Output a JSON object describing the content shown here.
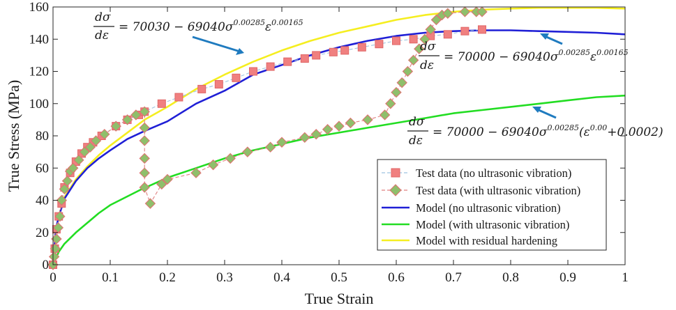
{
  "chart_data": {
    "type": "line",
    "xlabel": "True Strain",
    "ylabel": "True Stress (MPa)",
    "xlim": [
      0,
      1
    ],
    "ylim": [
      0,
      160
    ],
    "xticks": [
      0,
      0.1,
      0.2,
      0.3,
      0.4,
      0.5,
      0.6,
      0.7,
      0.8,
      0.9,
      1
    ],
    "xtick_labels": [
      "0",
      "0.1",
      "0.2",
      "0.3",
      "0.4",
      "0.5",
      "0.6",
      "0.7",
      "0.8",
      "0.9",
      "1"
    ],
    "yticks": [
      0,
      20,
      40,
      60,
      80,
      100,
      120,
      140,
      160
    ],
    "ytick_labels": [
      "0",
      "20",
      "40",
      "60",
      "80",
      "100",
      "120",
      "140",
      "160"
    ],
    "legend_position": "bottom-right",
    "series": [
      {
        "name": "Test data (no ultrasonic vibration)",
        "style": "marker-square",
        "color": "#f08080",
        "edge": "#e06666",
        "line": "#9ec4e0",
        "x": [
          0,
          0.003,
          0.006,
          0.01,
          0.015,
          0.02,
          0.03,
          0.04,
          0.05,
          0.06,
          0.07,
          0.085,
          0.11,
          0.13,
          0.15,
          0.16,
          0.19,
          0.22,
          0.26,
          0.29,
          0.32,
          0.35,
          0.38,
          0.41,
          0.44,
          0.46,
          0.49,
          0.51,
          0.54,
          0.57,
          0.6,
          0.63,
          0.66,
          0.69,
          0.72,
          0.75
        ],
        "y": [
          0,
          10,
          22,
          30,
          38,
          48,
          57,
          64,
          69,
          73,
          76,
          80,
          86,
          90,
          93,
          95,
          100,
          104,
          109,
          112,
          116,
          120,
          123,
          126,
          128,
          130,
          132,
          133,
          135,
          137,
          139,
          140,
          142,
          143,
          145,
          146
        ]
      },
      {
        "name": "Test data (with ultrasonic vibration)",
        "style": "marker-diamond",
        "color": "#8fbf6b",
        "edge": "#e07070",
        "line": "#e08080",
        "x": [
          0,
          0.002,
          0.004,
          0.006,
          0.009,
          0.012,
          0.015,
          0.02,
          0.025,
          0.03,
          0.035,
          0.045,
          0.055,
          0.065,
          0.075,
          0.09,
          0.11,
          0.13,
          0.145,
          0.16,
          0.16,
          0.16,
          0.16,
          0.16,
          0.16,
          0.17,
          0.19,
          0.2,
          0.25,
          0.28,
          0.31,
          0.34,
          0.38,
          0.4,
          0.44,
          0.46,
          0.48,
          0.5,
          0.52,
          0.55,
          0.58,
          0.59,
          0.6,
          0.61,
          0.62,
          0.63,
          0.64,
          0.65,
          0.66,
          0.67,
          0.68,
          0.69,
          0.72,
          0.74,
          0.75
        ],
        "y": [
          0,
          5,
          10,
          16,
          23,
          30,
          40,
          47,
          52,
          58,
          60,
          65,
          70,
          73,
          77,
          81,
          86,
          90,
          93,
          95,
          85,
          77,
          66,
          57,
          48,
          38,
          50,
          53,
          57,
          62,
          66,
          70,
          73,
          76,
          79,
          81,
          84,
          86,
          88,
          90,
          93,
          100,
          107,
          113,
          120,
          127,
          134,
          140,
          146,
          152,
          155,
          156,
          157,
          157,
          157
        ]
      },
      {
        "name": "Model (no ultrasonic vibration)",
        "style": "line",
        "color": "#1f1fd6",
        "x": [
          0,
          0.005,
          0.01,
          0.02,
          0.04,
          0.06,
          0.08,
          0.1,
          0.13,
          0.16,
          0.2,
          0.25,
          0.3,
          0.35,
          0.4,
          0.45,
          0.5,
          0.55,
          0.6,
          0.65,
          0.7,
          0.75,
          0.8,
          0.85,
          0.9,
          0.95,
          1.0
        ],
        "y": [
          0,
          22,
          30,
          41,
          52,
          60,
          66,
          71,
          78,
          83,
          89,
          100,
          108,
          118,
          124,
          130,
          135,
          139,
          142,
          144,
          145,
          145.5,
          145.5,
          145,
          144.5,
          144,
          143
        ]
      },
      {
        "name": "Model (with ultrasonic vibration)",
        "style": "line",
        "color": "#22dd22",
        "x": [
          0,
          0.01,
          0.02,
          0.04,
          0.06,
          0.08,
          0.1,
          0.15,
          0.2,
          0.25,
          0.3,
          0.35,
          0.4,
          0.45,
          0.5,
          0.55,
          0.6,
          0.65,
          0.7,
          0.75,
          0.8,
          0.85,
          0.9,
          0.95,
          1.0
        ],
        "y": [
          0,
          8,
          13,
          20,
          26,
          32,
          37,
          46,
          54,
          60,
          66,
          71,
          75,
          79,
          82,
          85,
          88,
          91,
          94,
          96,
          98,
          100,
          102,
          104,
          105
        ]
      },
      {
        "name": "Model with residual hardening",
        "style": "line",
        "color": "#f5ee20",
        "x": [
          0,
          0.005,
          0.01,
          0.02,
          0.04,
          0.06,
          0.08,
          0.1,
          0.13,
          0.16,
          0.2,
          0.25,
          0.3,
          0.35,
          0.4,
          0.45,
          0.5,
          0.55,
          0.6,
          0.65,
          0.7,
          0.75,
          0.8,
          0.85,
          0.9,
          0.95,
          1.0
        ],
        "y": [
          0,
          21,
          30,
          42,
          53,
          61,
          68,
          74,
          82,
          90,
          98,
          109,
          118,
          126,
          133,
          139,
          144,
          148,
          152,
          155,
          157,
          158.3,
          159,
          159.5,
          159.5,
          159.5,
          159
        ]
      }
    ],
    "annotations": [
      {
        "id": "yellow-eq",
        "lhs_top": "dσ",
        "lhs_bottom": "dε",
        "rhs": "= 70030 − 69040σ",
        "exp1": "0.00285",
        "mid": "ε",
        "exp2": "0.00165",
        "tail": ""
      },
      {
        "id": "blue-eq",
        "lhs_top": "dσ",
        "lhs_bottom": "dε",
        "rhs": "= 70000 − 69040σ",
        "exp1": "0.00285",
        "mid": "ε",
        "exp2": "0.00165",
        "tail": ""
      },
      {
        "id": "green-eq",
        "lhs_top": "dσ",
        "lhs_bottom": "dε",
        "rhs": "= 70000 − 69040σ",
        "exp1": "0.00285",
        "mid": "(ε",
        "exp2": "0.00",
        "tail": "+0.0002)"
      }
    ],
    "colors": {
      "arrow": "#1f7bbf",
      "axis": "#262626"
    }
  }
}
